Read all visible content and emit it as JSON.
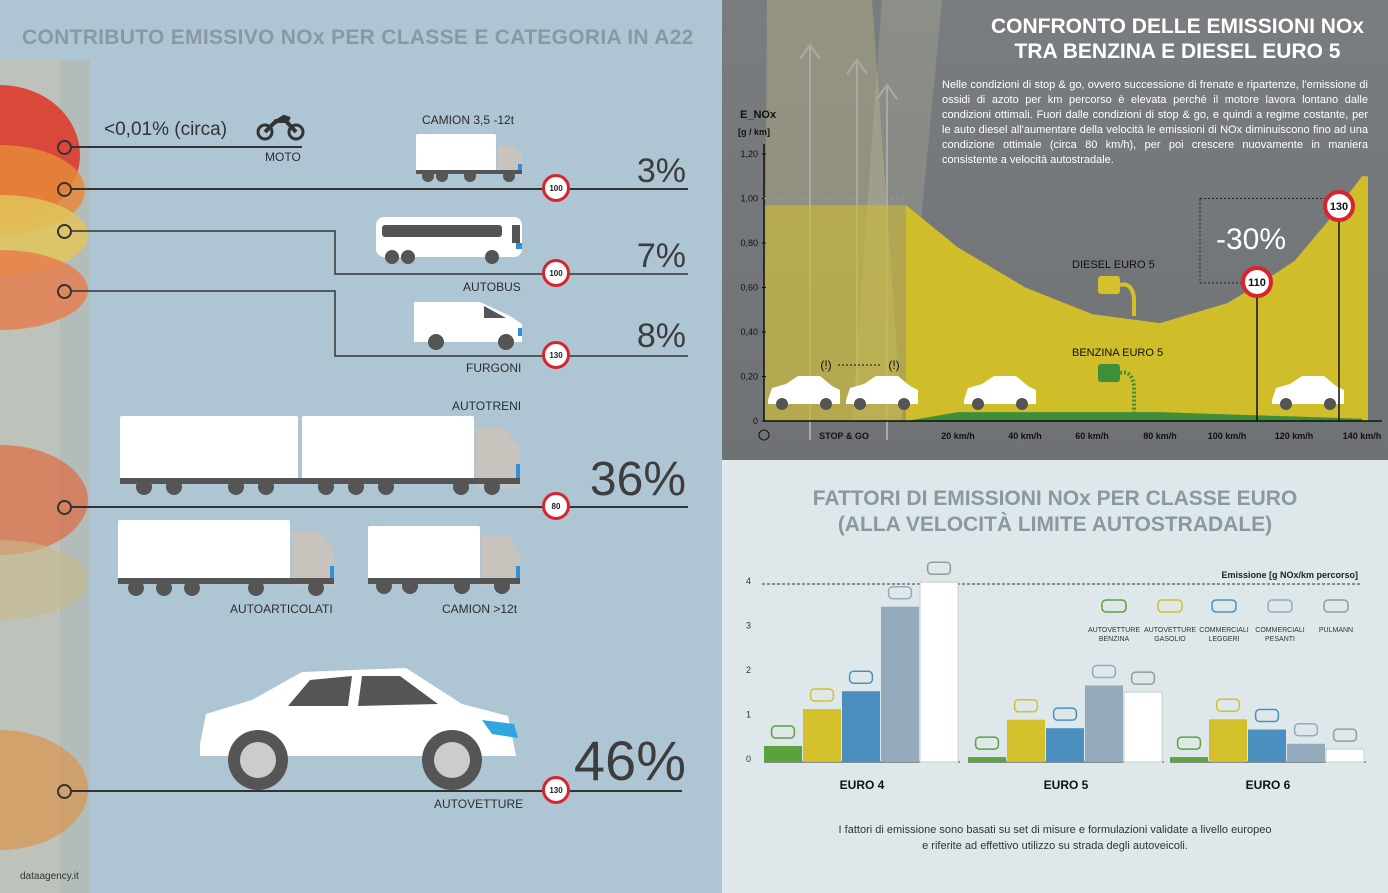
{
  "left": {
    "title": "CONTRIBUTO EMISSIVO NOx PER CLASSE E CATEGORIA IN A22",
    "rows": [
      {
        "label": "MOTO",
        "value_text": "<0,01% (circa)"
      },
      {
        "label": "CAMION 3,5 -12t",
        "percent": "3%",
        "limit": "100"
      },
      {
        "label": "AUTOBUS",
        "percent": "7%",
        "limit": "100"
      },
      {
        "label": "FURGONI",
        "percent": "8%",
        "limit": "130"
      },
      {
        "label": "AUTOTRENI",
        "percent": "36%",
        "limit": "80"
      },
      {
        "label": "AUTOARTICOLATI"
      },
      {
        "label": "CAMION >12t"
      },
      {
        "label": "AUTOVETTURE",
        "percent": "46%",
        "limit": "130"
      }
    ],
    "footer": "dataagency.it"
  },
  "top_right": {
    "title_line1": "CONFRONTO DELLE EMISSIONI NOx",
    "title_line2": "TRA BENZINA E DIESEL EURO 5",
    "description": "Nelle condizioni di stop & go, ovvero successione di frenate e ripartenze, l'emissione di ossidi di azoto per km percorso è elevata perché il motore lavora lontano dalle condizioni ottimali. Fuori dalle condizioni di stop & go, e quindi a regime costante, per le auto diesel all'aumentare della velocità le emissioni di NOx diminuiscono fino ad una condizione ottimale (circa 80 km/h), per poi crescere nuovamente in maniera consistente a velocità autostradale.",
    "reduction": "-30%",
    "sign_110": "110",
    "sign_130": "130",
    "diesel_label": "DIESEL EURO 5",
    "petrol_label": "BENZINA EURO 5"
  },
  "bottom_right": {
    "title_line1": "FATTORI DI EMISSIONI NOx PER CLASSE EURO",
    "title_line2": "(ALLA VELOCITÀ LIMITE AUTOSTRADALE)",
    "note_line1": "I fattori di emissione sono basati su set di misure e formulazioni validate a livello europeo",
    "note_line2": "e riferite ad effettivo utilizzo su strada degli autoveicoli."
  },
  "colors": {
    "petrol": "#5aa33c",
    "diesel": "#d4c02a",
    "light_commercial": "#4a8fc0",
    "heavy_commercial": "#94aabd",
    "bus": "#ffffff",
    "speed_sign": "#d9232d"
  },
  "chart_data": [
    {
      "type": "area",
      "ylabel": "E_NOx",
      "yunit": "[g / km]",
      "yticks": [
        "1,20",
        "1,00",
        "0,80",
        "0,60",
        "0,40",
        "0,20",
        "0"
      ],
      "ylim": [
        0,
        1.2
      ],
      "xticks": [
        "STOP & GO",
        "20 km/h",
        "40 km/h",
        "60 km/h",
        "80 km/h",
        "100 km/h",
        "120 km/h",
        "140 km/h"
      ],
      "series": [
        {
          "name": "DIESEL EURO 5",
          "x": [
            0,
            20,
            40,
            60,
            80,
            100,
            110,
            120,
            130,
            140
          ],
          "y": [
            0.97,
            0.78,
            0.6,
            0.48,
            0.44,
            0.53,
            0.62,
            0.72,
            0.9,
            1.1
          ]
        },
        {
          "name": "BENZINA EURO 5",
          "x": [
            0,
            20,
            40,
            60,
            80,
            100,
            120,
            140
          ],
          "y": [
            0.02,
            0.04,
            0.04,
            0.04,
            0.04,
            0.03,
            0.02,
            0.01
          ]
        }
      ],
      "annotations": [
        "-30%",
        "110",
        "130"
      ]
    },
    {
      "type": "bar",
      "ylabel": "Emissione [g NOx/km percorso]",
      "ylim": [
        0,
        4
      ],
      "yticks": [
        "4",
        "3",
        "2",
        "1",
        "0"
      ],
      "categories": [
        "EURO 4",
        "EURO 5",
        "EURO 6"
      ],
      "series": [
        {
          "name": "AUTOVETTURE BENZINA",
          "values": [
            0.27,
            0.02,
            0.02
          ]
        },
        {
          "name": "AUTOVETTURE GASOLIO",
          "values": [
            1.1,
            0.86,
            0.87
          ]
        },
        {
          "name": "COMMERCIALI LEGGERI",
          "values": [
            1.5,
            0.67,
            0.64
          ]
        },
        {
          "name": "COMMERCIALI PESANTI",
          "values": [
            3.4,
            1.63,
            0.32
          ]
        },
        {
          "name": "PULMANN",
          "values": [
            3.95,
            1.48,
            0.2
          ]
        }
      ]
    }
  ]
}
